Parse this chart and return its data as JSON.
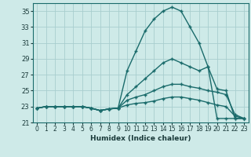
{
  "title": "",
  "xlabel": "Humidex (Indice chaleur)",
  "ylabel": "",
  "background_color": "#ceeae8",
  "grid_color": "#a8cece",
  "line_color": "#1a6b6b",
  "x": [
    0,
    1,
    2,
    3,
    4,
    5,
    6,
    7,
    8,
    9,
    10,
    11,
    12,
    13,
    14,
    15,
    16,
    17,
    18,
    19,
    20,
    21,
    22,
    23
  ],
  "series": [
    [
      22.8,
      23.0,
      23.0,
      23.0,
      23.0,
      23.0,
      22.8,
      22.5,
      22.7,
      22.8,
      27.5,
      30.0,
      32.5,
      34.0,
      35.0,
      35.5,
      35.0,
      33.0,
      31.0,
      28.0,
      21.5,
      21.5,
      21.5,
      21.5
    ],
    [
      22.8,
      23.0,
      23.0,
      23.0,
      23.0,
      23.0,
      22.8,
      22.5,
      22.7,
      22.8,
      24.5,
      25.5,
      26.5,
      27.5,
      28.5,
      29.0,
      28.5,
      28.0,
      27.5,
      28.0,
      25.2,
      25.0,
      21.5,
      21.5
    ],
    [
      22.8,
      23.0,
      23.0,
      23.0,
      23.0,
      23.0,
      22.8,
      22.5,
      22.7,
      22.8,
      23.8,
      24.2,
      24.5,
      25.0,
      25.5,
      25.8,
      25.8,
      25.5,
      25.3,
      25.0,
      24.8,
      24.5,
      22.0,
      21.5
    ],
    [
      22.8,
      23.0,
      23.0,
      23.0,
      23.0,
      23.0,
      22.8,
      22.5,
      22.7,
      22.8,
      23.2,
      23.4,
      23.5,
      23.7,
      24.0,
      24.2,
      24.2,
      24.0,
      23.8,
      23.5,
      23.2,
      23.0,
      21.8,
      21.5
    ]
  ],
  "ylim": [
    21,
    36
  ],
  "yticks": [
    21,
    23,
    25,
    27,
    29,
    31,
    33,
    35
  ],
  "xticks": [
    0,
    1,
    2,
    3,
    4,
    5,
    6,
    7,
    8,
    9,
    10,
    11,
    12,
    13,
    14,
    15,
    16,
    17,
    18,
    19,
    20,
    21,
    22,
    23
  ],
  "marker": "+",
  "markersize": 3.5,
  "linewidth": 1.0
}
